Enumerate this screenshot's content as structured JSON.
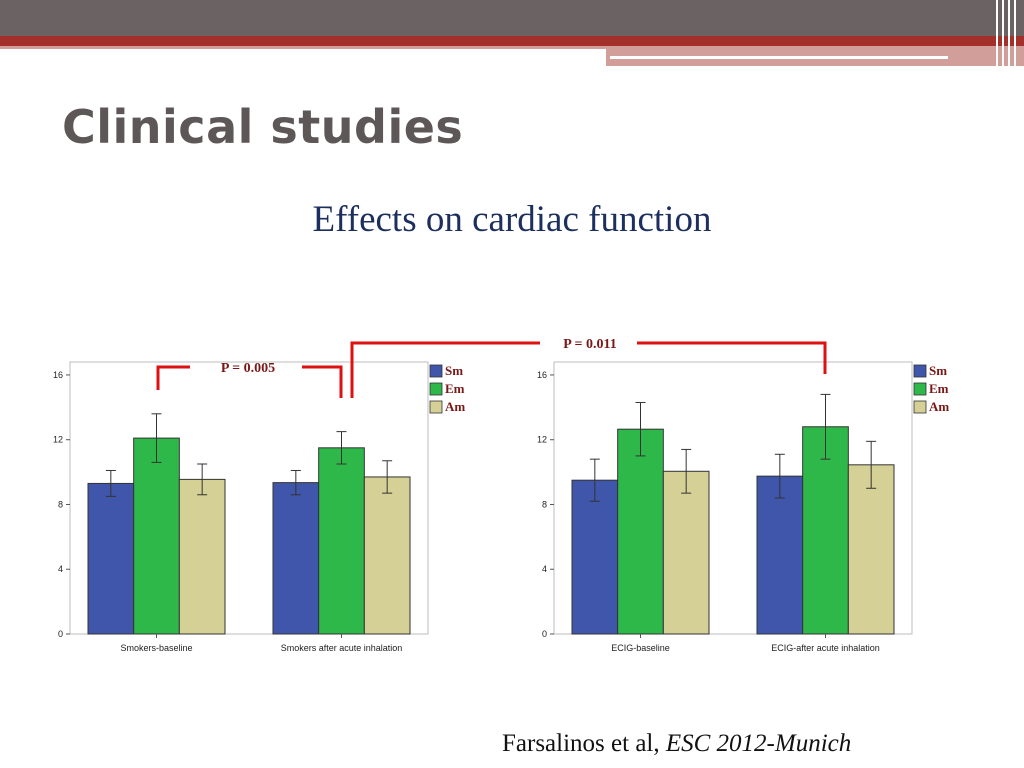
{
  "slide": {
    "title": "Clinical studies",
    "subtitle": "Effects on cardiac function",
    "citation_authors": "Farsalinos et al, ",
    "citation_venue": "ESC 2012-Munich"
  },
  "colors": {
    "Sm": "#3f56ab",
    "Em": "#2eb84a",
    "Am": "#d5d095",
    "bracket": "#dd1111",
    "title": "#5d5857",
    "subtitle": "#1c2f5e"
  },
  "annotations": [
    {
      "text": "P = 0.005",
      "compares": "Em: Smokers-baseline vs Smokers after acute inhalation"
    },
    {
      "text": "P = 0.011",
      "compares": "Em: Smokers after acute inhalation vs ECIG-after acute inhalation"
    }
  ],
  "chart_data": [
    {
      "type": "bar",
      "categories": [
        "Smokers-baseline",
        "Smokers after acute inhalation"
      ],
      "series": [
        {
          "name": "Sm",
          "values": [
            9.3,
            9.35
          ],
          "error": [
            [
              8.5,
              10.1
            ],
            [
              8.6,
              10.1
            ]
          ]
        },
        {
          "name": "Em",
          "values": [
            12.1,
            11.5
          ],
          "error": [
            [
              10.6,
              13.6
            ],
            [
              10.5,
              12.5
            ]
          ]
        },
        {
          "name": "Am",
          "values": [
            9.55,
            9.7
          ],
          "error": [
            [
              8.6,
              10.5
            ],
            [
              8.7,
              10.7
            ]
          ]
        }
      ],
      "yticks": [
        "0",
        "4",
        "8",
        "12",
        "16"
      ],
      "ylim": [
        0,
        16.8
      ],
      "legend": "right",
      "grid": false
    },
    {
      "type": "bar",
      "categories": [
        "ECIG-baseline",
        "ECIG-after acute inhalation"
      ],
      "series": [
        {
          "name": "Sm",
          "values": [
            9.5,
            9.75
          ],
          "error": [
            [
              8.2,
              10.8
            ],
            [
              8.4,
              11.1
            ]
          ]
        },
        {
          "name": "Em",
          "values": [
            12.65,
            12.8
          ],
          "error": [
            [
              11.0,
              14.3
            ],
            [
              10.8,
              14.8
            ]
          ]
        },
        {
          "name": "Am",
          "values": [
            10.05,
            10.45
          ],
          "error": [
            [
              8.7,
              11.4
            ],
            [
              9.0,
              11.9
            ]
          ]
        }
      ],
      "yticks": [
        "0",
        "4",
        "8",
        "12",
        "16"
      ],
      "ylim": [
        0,
        16.8
      ],
      "legend": "right",
      "grid": false
    }
  ]
}
